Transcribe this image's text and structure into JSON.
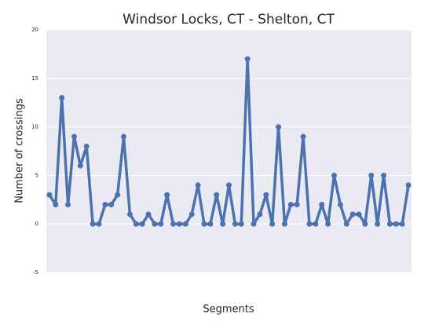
{
  "chart_data": {
    "type": "line",
    "title": "Windsor Locks, CT - Shelton, CT",
    "xlabel": "Segments",
    "ylabel": "Number of crossings",
    "categories": [
      null,
      null,
      null,
      null,
      null,
      null,
      null,
      null,
      null,
      null,
      null,
      null,
      null,
      null,
      null,
      null,
      null,
      null,
      null,
      null,
      null,
      null,
      null,
      null,
      null,
      null,
      null,
      null,
      null,
      null,
      null,
      null,
      null,
      null,
      null,
      null,
      null,
      null,
      null,
      null,
      null,
      null,
      null,
      null,
      null,
      null,
      null,
      null,
      null,
      null,
      null,
      null,
      null,
      null,
      null,
      null,
      null,
      null,
      null
    ],
    "series": [
      {
        "name": null,
        "color": "#4c72b0",
        "values": [
          3,
          2,
          13,
          2,
          9,
          6,
          8,
          0,
          0,
          2,
          2,
          3,
          9,
          1,
          0,
          0,
          1,
          0,
          0,
          3,
          0,
          0,
          0,
          1,
          4,
          0,
          0,
          3,
          0,
          4,
          0,
          0,
          17,
          0,
          1,
          3,
          0,
          10,
          0,
          2,
          2,
          9,
          0,
          0,
          2,
          0,
          5,
          2,
          0,
          1,
          1,
          0,
          5,
          0,
          5,
          0,
          0,
          0,
          4
        ]
      }
    ],
    "ylim": [
      -5,
      20
    ],
    "yticks": [
      -5,
      0,
      5,
      10,
      15,
      20
    ],
    "grid": true
  }
}
